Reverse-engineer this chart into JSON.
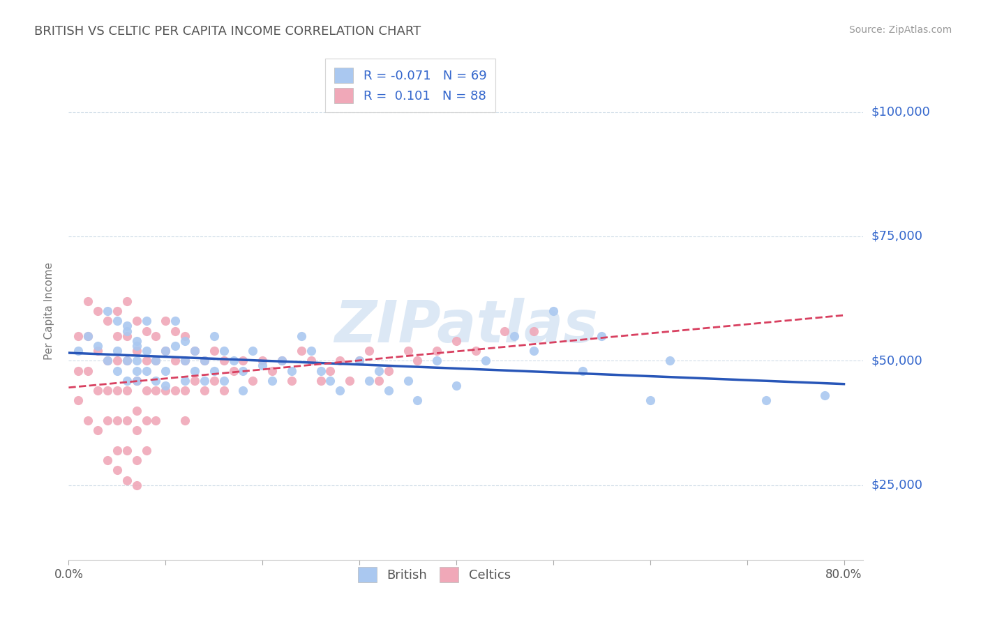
{
  "title": "BRITISH VS CELTIC PER CAPITA INCOME CORRELATION CHART",
  "source_text": "Source: ZipAtlas.com",
  "ylabel": "Per Capita Income",
  "xlabel_ticks": [
    "0.0%",
    "",
    "",
    "",
    "",
    "",
    "",
    "",
    "80.0%"
  ],
  "ytick_labels": [
    "$25,000",
    "$50,000",
    "$75,000",
    "$100,000"
  ],
  "ytick_values": [
    25000,
    50000,
    75000,
    100000
  ],
  "xlim": [
    0.0,
    0.82
  ],
  "ylim": [
    10000,
    110000
  ],
  "legend_r_british": "-0.071",
  "legend_n_british": "69",
  "legend_r_celtics": "0.101",
  "legend_n_celtics": "88",
  "british_color": "#aac8f0",
  "celtics_color": "#f0a8b8",
  "british_line_color": "#2856b8",
  "celtics_line_color": "#d84060",
  "axis_label_color": "#3366cc",
  "watermark_text": "ZIPatlas",
  "watermark_color": "#dce8f5",
  "grid_color": "#d0dde8",
  "british_scatter_x": [
    0.01,
    0.02,
    0.03,
    0.04,
    0.04,
    0.05,
    0.05,
    0.05,
    0.06,
    0.06,
    0.06,
    0.06,
    0.07,
    0.07,
    0.07,
    0.07,
    0.07,
    0.08,
    0.08,
    0.08,
    0.09,
    0.09,
    0.1,
    0.1,
    0.1,
    0.11,
    0.11,
    0.12,
    0.12,
    0.12,
    0.13,
    0.13,
    0.14,
    0.14,
    0.15,
    0.15,
    0.16,
    0.16,
    0.17,
    0.18,
    0.18,
    0.19,
    0.2,
    0.21,
    0.22,
    0.23,
    0.24,
    0.25,
    0.26,
    0.27,
    0.28,
    0.3,
    0.31,
    0.32,
    0.33,
    0.35,
    0.36,
    0.38,
    0.4,
    0.43,
    0.46,
    0.48,
    0.5,
    0.53,
    0.55,
    0.6,
    0.62,
    0.72,
    0.78
  ],
  "british_scatter_y": [
    52000,
    55000,
    53000,
    60000,
    50000,
    58000,
    52000,
    48000,
    56000,
    50000,
    46000,
    57000,
    54000,
    50000,
    46000,
    53000,
    48000,
    52000,
    48000,
    58000,
    50000,
    46000,
    52000,
    48000,
    45000,
    58000,
    53000,
    50000,
    46000,
    54000,
    52000,
    48000,
    50000,
    46000,
    55000,
    48000,
    52000,
    46000,
    50000,
    48000,
    44000,
    52000,
    49000,
    46000,
    50000,
    48000,
    55000,
    52000,
    48000,
    46000,
    44000,
    50000,
    46000,
    48000,
    44000,
    46000,
    42000,
    50000,
    45000,
    50000,
    55000,
    52000,
    60000,
    48000,
    55000,
    42000,
    50000,
    42000,
    43000
  ],
  "celtics_scatter_x": [
    0.01,
    0.01,
    0.01,
    0.02,
    0.02,
    0.02,
    0.02,
    0.03,
    0.03,
    0.03,
    0.03,
    0.04,
    0.04,
    0.04,
    0.04,
    0.04,
    0.05,
    0.05,
    0.05,
    0.05,
    0.05,
    0.05,
    0.05,
    0.06,
    0.06,
    0.06,
    0.06,
    0.06,
    0.06,
    0.06,
    0.07,
    0.07,
    0.07,
    0.07,
    0.07,
    0.07,
    0.07,
    0.08,
    0.08,
    0.08,
    0.08,
    0.08,
    0.09,
    0.09,
    0.09,
    0.09,
    0.1,
    0.1,
    0.1,
    0.11,
    0.11,
    0.11,
    0.12,
    0.12,
    0.12,
    0.12,
    0.13,
    0.13,
    0.14,
    0.14,
    0.15,
    0.15,
    0.16,
    0.16,
    0.17,
    0.18,
    0.19,
    0.2,
    0.21,
    0.22,
    0.23,
    0.24,
    0.25,
    0.26,
    0.27,
    0.28,
    0.29,
    0.3,
    0.31,
    0.32,
    0.33,
    0.35,
    0.36,
    0.38,
    0.4,
    0.42,
    0.45,
    0.48
  ],
  "celtics_scatter_y": [
    55000,
    48000,
    42000,
    62000,
    55000,
    48000,
    38000,
    60000,
    52000,
    44000,
    36000,
    58000,
    50000,
    44000,
    38000,
    30000,
    60000,
    55000,
    50000,
    44000,
    38000,
    32000,
    28000,
    62000,
    55000,
    50000,
    44000,
    38000,
    32000,
    26000,
    58000,
    52000,
    46000,
    40000,
    36000,
    30000,
    25000,
    56000,
    50000,
    44000,
    38000,
    32000,
    55000,
    50000,
    44000,
    38000,
    58000,
    52000,
    44000,
    56000,
    50000,
    44000,
    55000,
    50000,
    44000,
    38000,
    52000,
    46000,
    50000,
    44000,
    52000,
    46000,
    50000,
    44000,
    48000,
    50000,
    46000,
    50000,
    48000,
    50000,
    46000,
    52000,
    50000,
    46000,
    48000,
    50000,
    46000,
    50000,
    52000,
    46000,
    48000,
    52000,
    50000,
    52000,
    54000,
    52000,
    56000,
    56000
  ]
}
